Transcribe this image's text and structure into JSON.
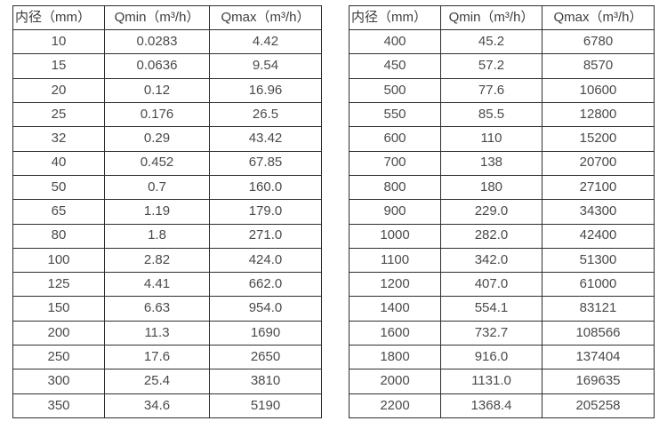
{
  "colors": {
    "background": "#ffffff",
    "border": "#2e2e2e",
    "text": "#4a4a4a",
    "header_text": "#3d3d3d"
  },
  "tables": [
    {
      "name": "flow-table-small-diameters",
      "headers": [
        "内径（mm）",
        "Qmin（m³/h）",
        "Qmax（m³/h）"
      ],
      "rows": [
        [
          "10",
          "0.0283",
          "4.42"
        ],
        [
          "15",
          "0.0636",
          "9.54"
        ],
        [
          "20",
          "0.12",
          "16.96"
        ],
        [
          "25",
          "0.176",
          "26.5"
        ],
        [
          "32",
          "0.29",
          "43.42"
        ],
        [
          "40",
          "0.452",
          "67.85"
        ],
        [
          "50",
          "0.7",
          "160.0"
        ],
        [
          "65",
          "1.19",
          "179.0"
        ],
        [
          "80",
          "1.8",
          "271.0"
        ],
        [
          "100",
          "2.82",
          "424.0"
        ],
        [
          "125",
          "4.41",
          "662.0"
        ],
        [
          "150",
          "6.63",
          "954.0"
        ],
        [
          "200",
          "11.3",
          "1690"
        ],
        [
          "250",
          "17.6",
          "2650"
        ],
        [
          "300",
          "25.4",
          "3810"
        ],
        [
          "350",
          "34.6",
          "5190"
        ]
      ]
    },
    {
      "name": "flow-table-large-diameters",
      "headers": [
        "内径（mm）",
        "Qmin（m³/h）",
        "Qmax（m³/h）"
      ],
      "rows": [
        [
          "400",
          "45.2",
          "6780"
        ],
        [
          "450",
          "57.2",
          "8570"
        ],
        [
          "500",
          "77.6",
          "10600"
        ],
        [
          "550",
          "85.5",
          "12800"
        ],
        [
          "600",
          "110",
          "15200"
        ],
        [
          "700",
          "138",
          "20700"
        ],
        [
          "800",
          "180",
          "27100"
        ],
        [
          "900",
          "229.0",
          "34300"
        ],
        [
          "1000",
          "282.0",
          "42400"
        ],
        [
          "1100",
          "342.0",
          "51300"
        ],
        [
          "1200",
          "407.0",
          "61000"
        ],
        [
          "1400",
          "554.1",
          "83121"
        ],
        [
          "1600",
          "732.7",
          "108566"
        ],
        [
          "1800",
          "916.0",
          "137404"
        ],
        [
          "2000",
          "1131.0",
          "169635"
        ],
        [
          "2200",
          "1368.4",
          "205258"
        ]
      ]
    }
  ]
}
